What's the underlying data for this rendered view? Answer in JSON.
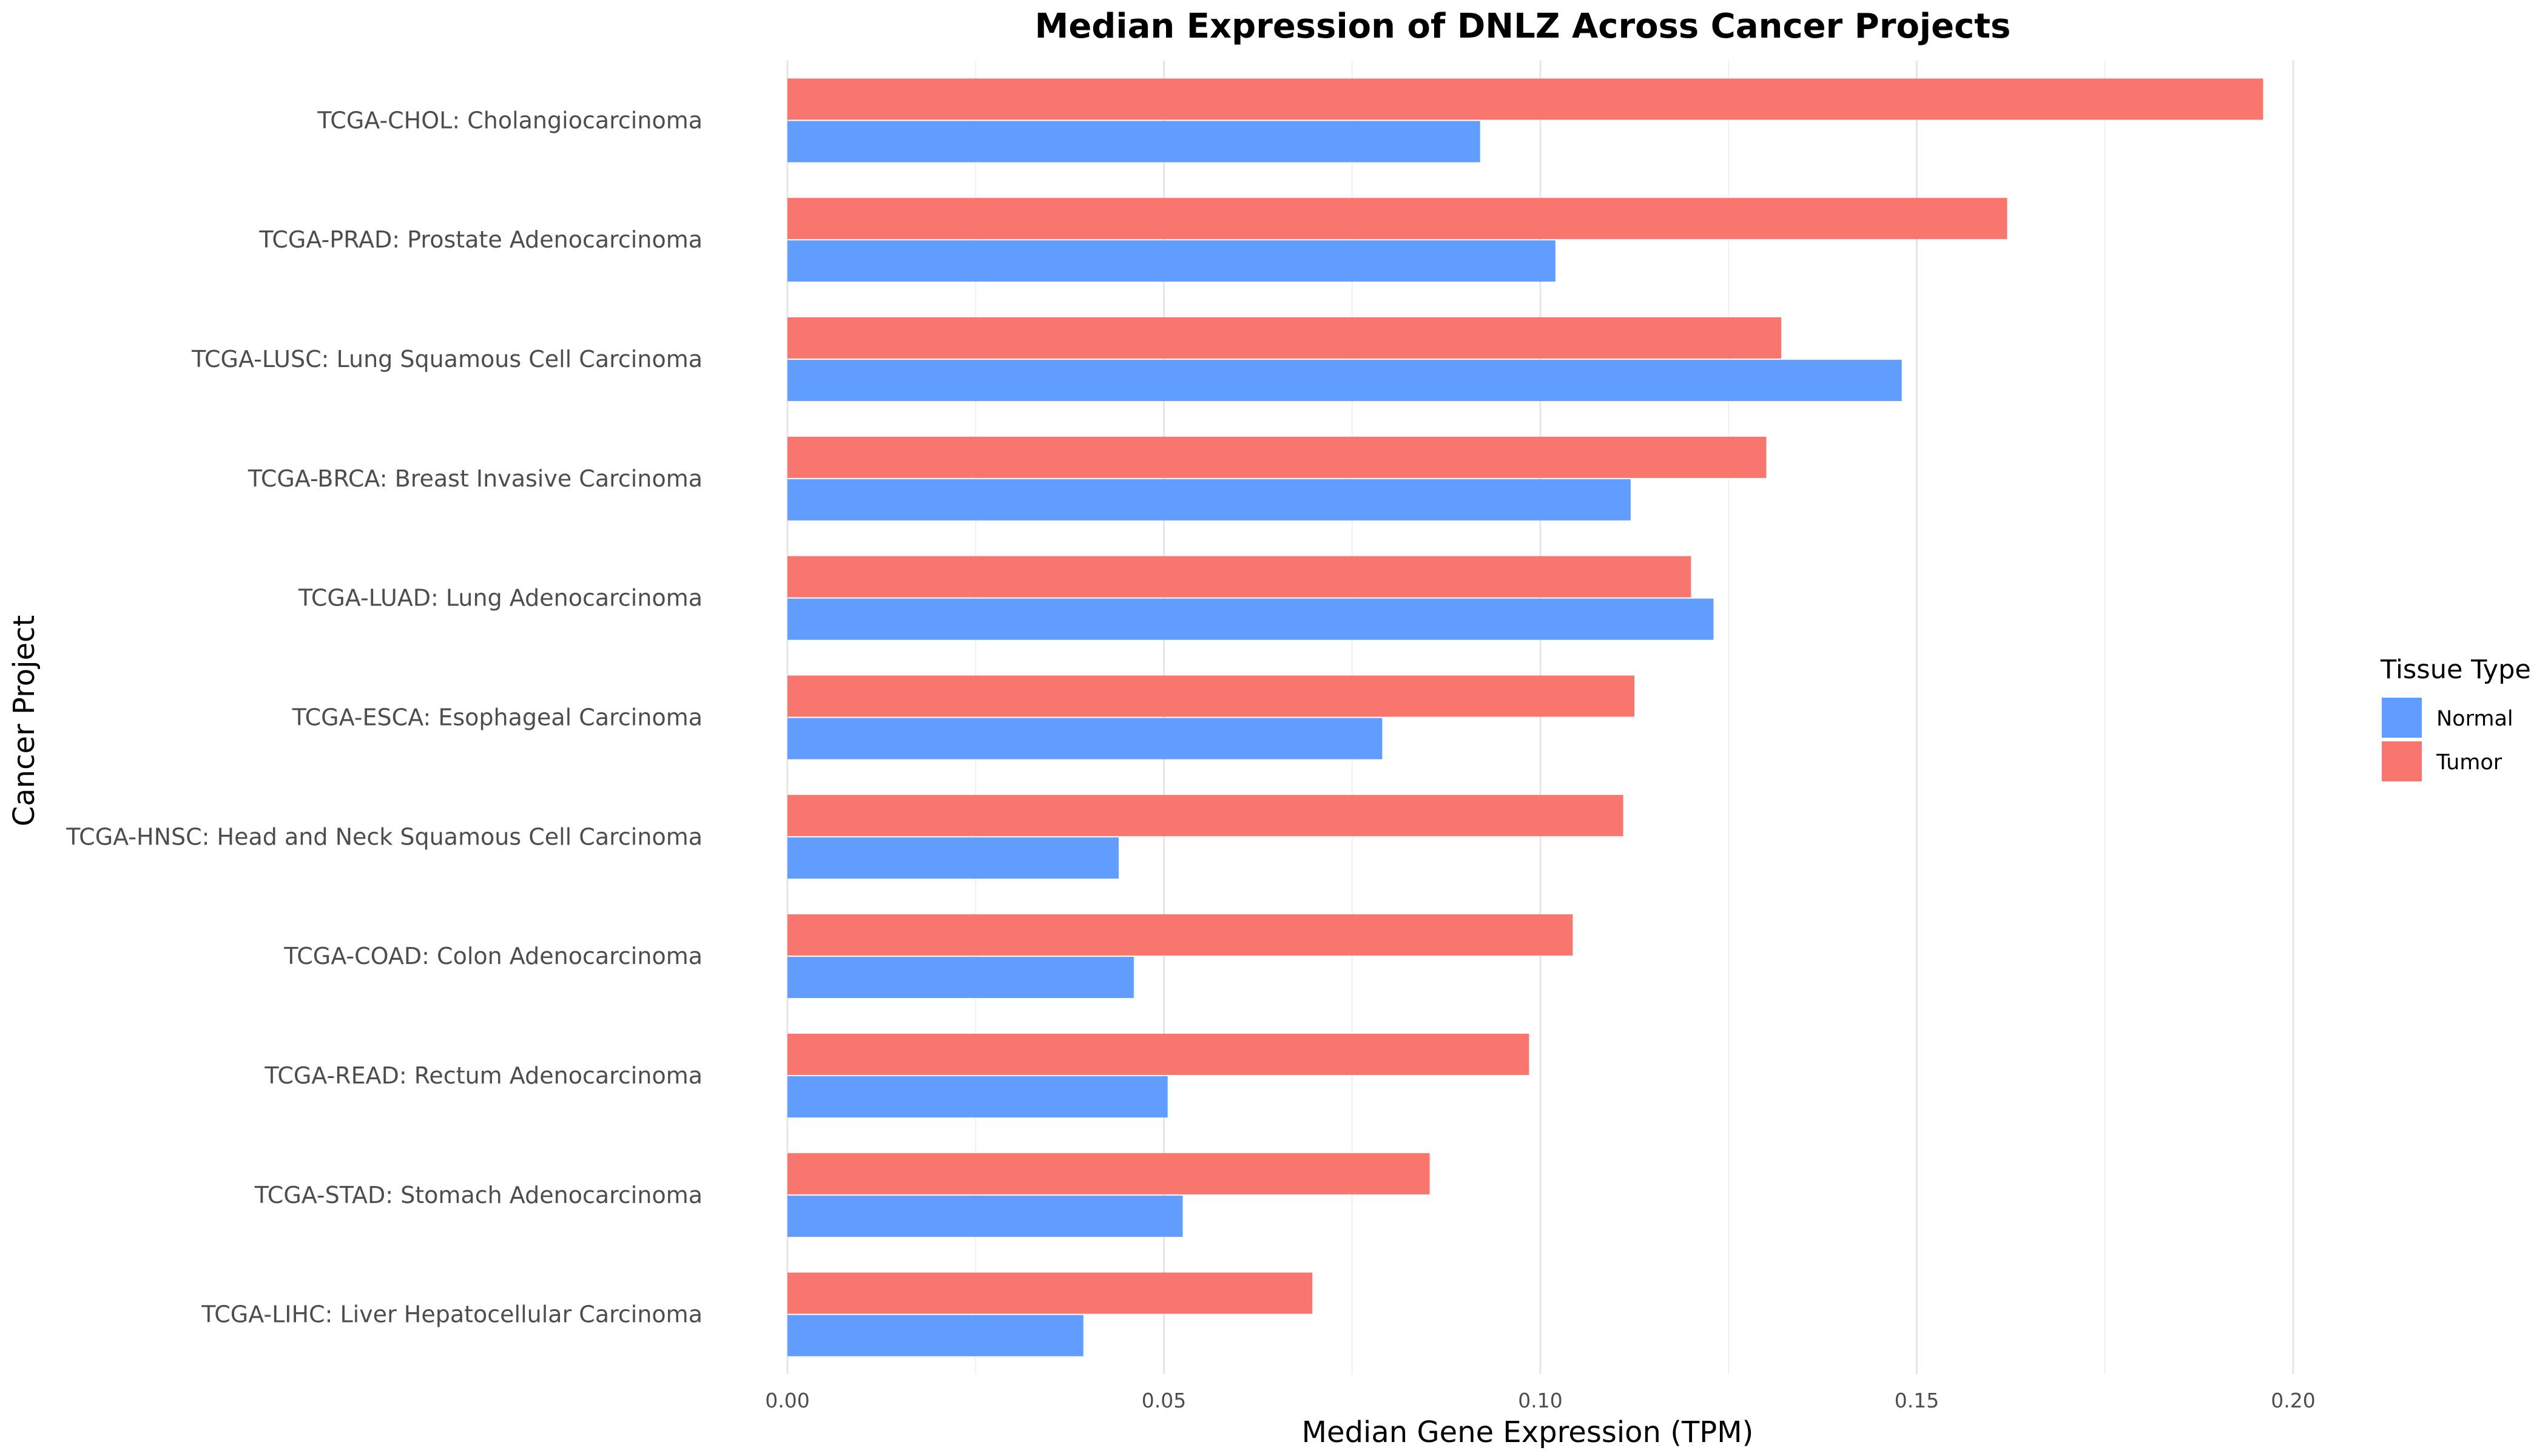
{
  "chart_data": {
    "type": "bar",
    "orientation": "horizontal",
    "title": "Median Expression of DNLZ Across Cancer Projects",
    "xlabel": "Median Gene Expression (TPM)",
    "ylabel": "Cancer Project",
    "xlim": [
      0,
      0.2
    ],
    "xticks": [
      0,
      0.05,
      0.1,
      0.15,
      0.2
    ],
    "xtick_labels": [
      "0.00",
      "0.05",
      "0.10",
      "0.15",
      "0.20"
    ],
    "grid": true,
    "legend": {
      "title": "Tissue Type",
      "placement": "right"
    },
    "categories": [
      "TCGA-CHOL: Cholangiocarcinoma",
      "TCGA-PRAD: Prostate Adenocarcinoma",
      "TCGA-LUSC: Lung Squamous Cell Carcinoma",
      "TCGA-BRCA: Breast Invasive Carcinoma",
      "TCGA-LUAD: Lung Adenocarcinoma",
      "TCGA-ESCA: Esophageal Carcinoma",
      "TCGA-HNSC: Head and Neck Squamous Cell Carcinoma",
      "TCGA-COAD: Colon Adenocarcinoma",
      "TCGA-READ: Rectum Adenocarcinoma",
      "TCGA-STAD: Stomach Adenocarcinoma",
      "TCGA-LIHC: Liver Hepatocellular Carcinoma"
    ],
    "series": [
      {
        "name": "Normal",
        "color": "#619CFF",
        "values": [
          0.092,
          0.102,
          0.148,
          0.112,
          0.123,
          0.079,
          0.044,
          0.046,
          0.0505,
          0.0525,
          0.0393
        ]
      },
      {
        "name": "Tumor",
        "color": "#F8766D",
        "values": [
          0.196,
          0.162,
          0.132,
          0.13,
          0.12,
          0.1125,
          0.111,
          0.1043,
          0.0985,
          0.0853,
          0.0697
        ]
      }
    ]
  }
}
